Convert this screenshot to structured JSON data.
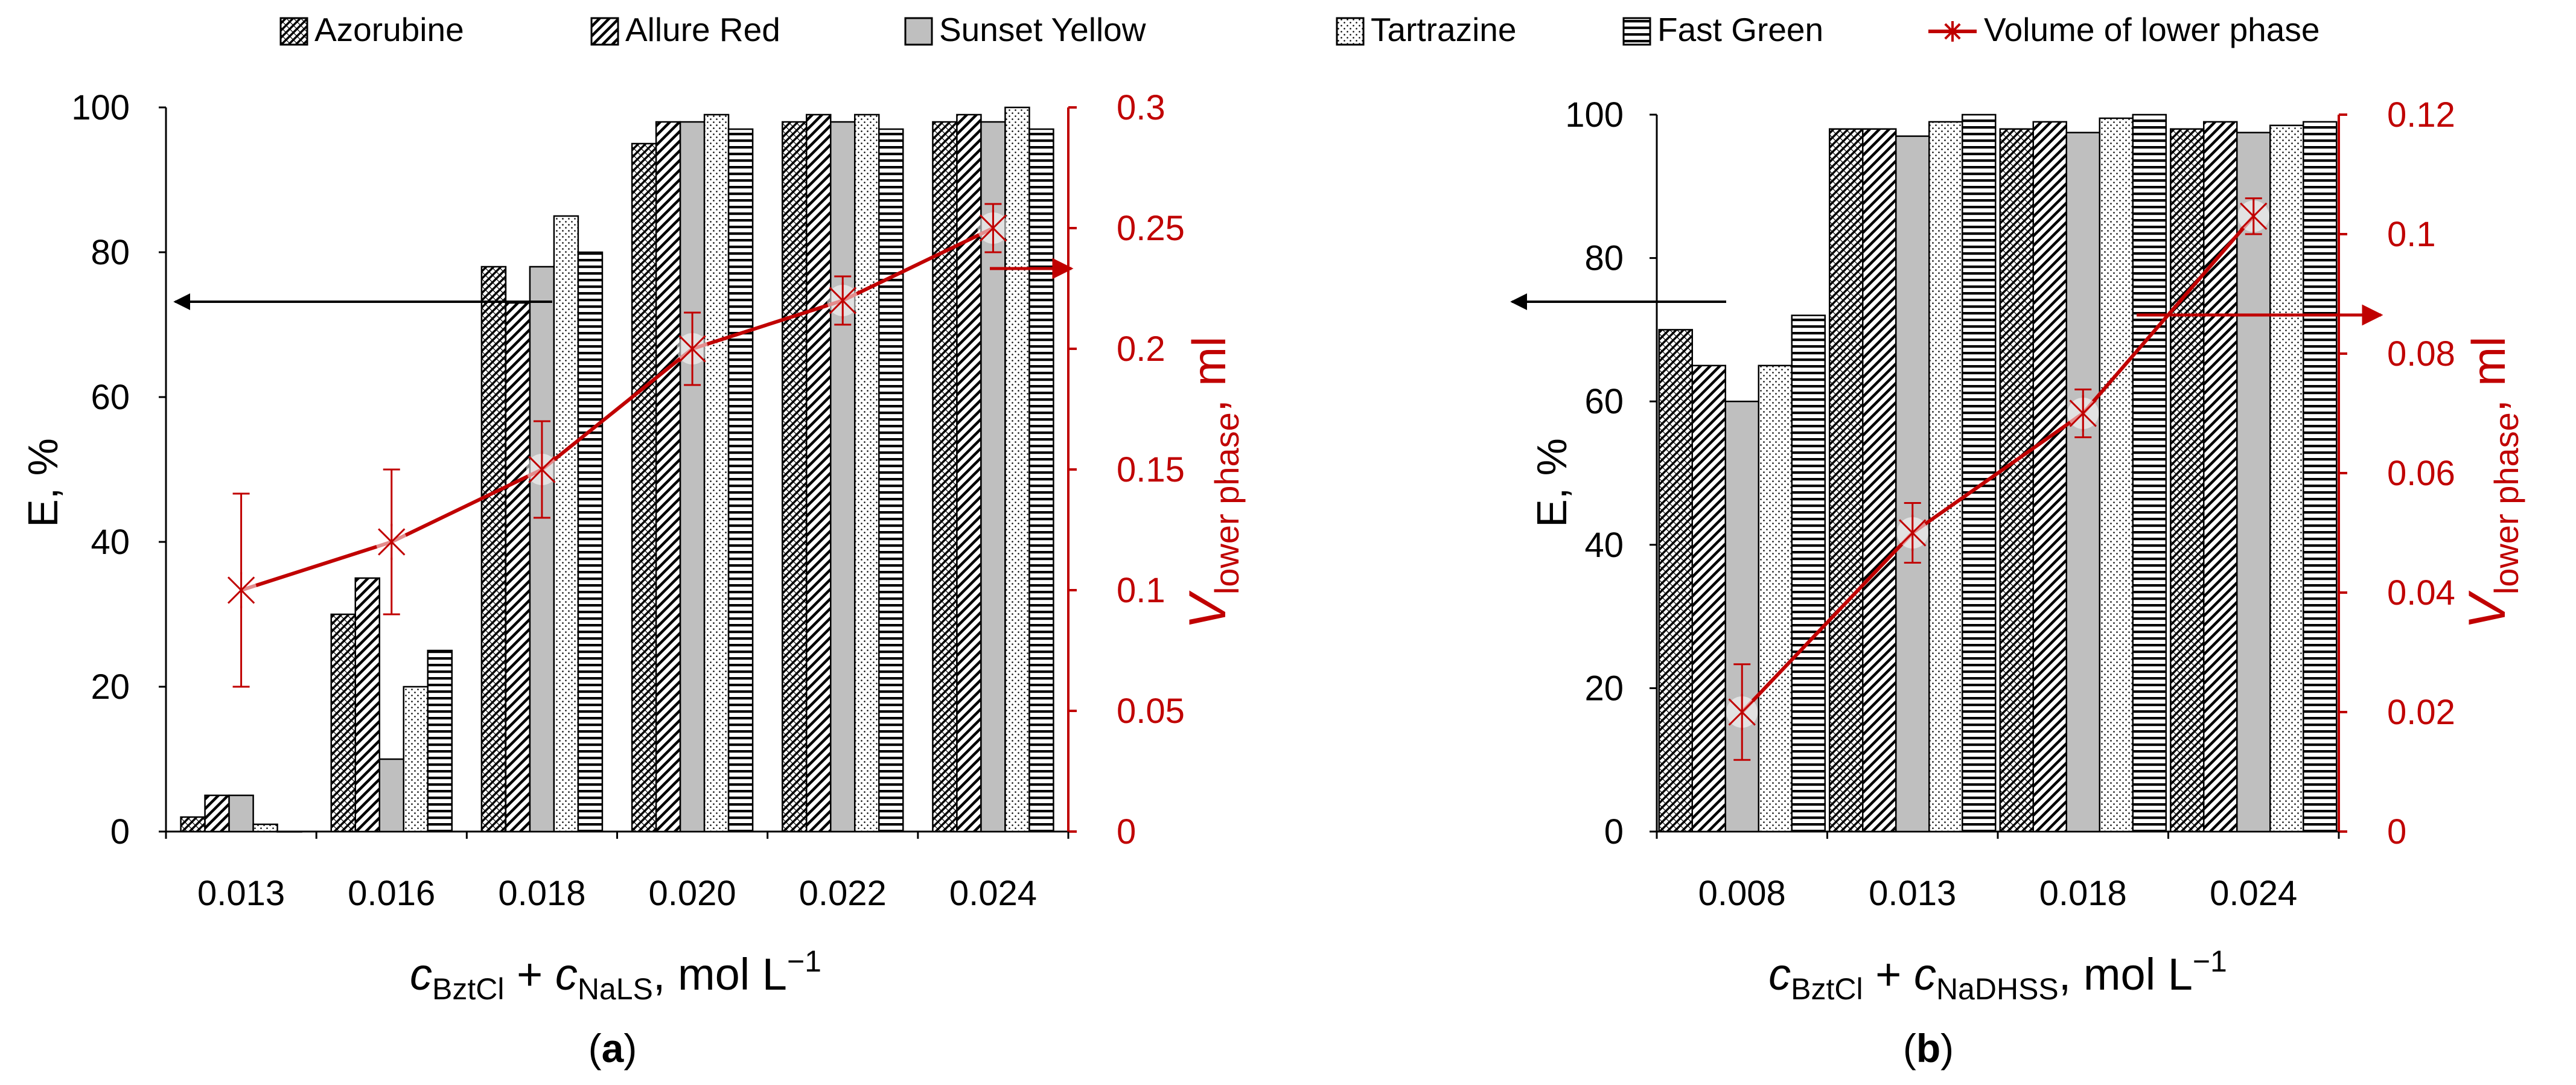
{
  "colors": {
    "axis": "#000000",
    "volume": "#c00000",
    "sunset_fill": "#bfbfbf"
  },
  "legend_left": [
    {
      "name": "Azorubine",
      "pattern": "crosshatch"
    },
    {
      "name": "Allure Red",
      "pattern": "diag"
    },
    {
      "name": "Sunset Yellow",
      "pattern": "solid"
    }
  ],
  "legend_right": [
    {
      "name": "Tartrazine",
      "pattern": "dots"
    },
    {
      "name": "Fast Green",
      "pattern": "hlines"
    },
    {
      "name": "Volume of  lower phase",
      "pattern": "marker"
    }
  ],
  "chart_data": [
    {
      "type": "bar",
      "panel_label": "a",
      "categories": [
        "0.013",
        "0.016",
        "0.018",
        "0.020",
        "0.022",
        "0.024"
      ],
      "series": [
        {
          "name": "Azorubine",
          "values": [
            2,
            30,
            78,
            95,
            98,
            98
          ]
        },
        {
          "name": "Allure Red",
          "values": [
            5,
            35,
            73,
            98,
            99,
            99
          ]
        },
        {
          "name": "Sunset Yellow",
          "values": [
            5,
            10,
            78,
            98,
            98,
            98
          ]
        },
        {
          "name": "Tartrazine",
          "values": [
            1,
            20,
            85,
            99,
            99,
            100
          ]
        },
        {
          "name": "Fast Green",
          "values": [
            0,
            25,
            80,
            97,
            97,
            97
          ]
        }
      ],
      "line_series": {
        "name": "Volume of  lower phase",
        "values": [
          0.1,
          0.12,
          0.15,
          0.2,
          0.22,
          0.25
        ],
        "errors": [
          0.04,
          0.03,
          0.02,
          0.015,
          0.01,
          0.01
        ]
      },
      "ylabel": "E, %",
      "ylim": [
        0,
        100
      ],
      "yticks": [
        "0",
        "20",
        "40",
        "60",
        "80",
        "100"
      ],
      "y2label": {
        "main": "V",
        "sub": "lower phase",
        "unit": ", ml"
      },
      "y2lim": [
        0,
        0.3
      ],
      "y2ticks": [
        "0",
        "0.05",
        "0.1",
        "0.15",
        "0.2",
        "0.25",
        "0.3"
      ],
      "xlabel": {
        "c1": "c",
        "sub1": "BztCl",
        "plus": " + ",
        "c2": "c",
        "sub2": "NaLS",
        "unit": ", mol L",
        "sup": "−1"
      }
    },
    {
      "type": "bar",
      "panel_label": "b",
      "categories": [
        "0.008",
        "0.013",
        "0.018",
        "0.024"
      ],
      "series": [
        {
          "name": "Azorubine",
          "values": [
            70,
            98,
            98,
            98
          ]
        },
        {
          "name": "Allure Red",
          "values": [
            65,
            98,
            99,
            99
          ]
        },
        {
          "name": "Sunset Yellow",
          "values": [
            60,
            97,
            97.5,
            97.5
          ]
        },
        {
          "name": "Tartrazine",
          "values": [
            65,
            99,
            99.5,
            98.5
          ]
        },
        {
          "name": "Fast Green",
          "values": [
            72,
            100,
            100,
            99
          ]
        }
      ],
      "line_series": {
        "name": "Volume of  lower phase",
        "values": [
          0.02,
          0.05,
          0.07,
          0.103
        ],
        "errors": [
          0.008,
          0.005,
          0.004,
          0.003
        ]
      },
      "ylabel": "E, %",
      "ylim": [
        0,
        100
      ],
      "yticks": [
        "0",
        "20",
        "40",
        "60",
        "80",
        "100"
      ],
      "y2label": {
        "main": "V",
        "sub": "lower phase",
        "unit": ", ml"
      },
      "y2lim": [
        0,
        0.12
      ],
      "y2ticks": [
        "0",
        "0.02",
        "0.04",
        "0.06",
        "0.08",
        "0.1",
        "0.12"
      ],
      "xlabel": {
        "c1": "c",
        "sub1": "BztCl",
        "plus": " + ",
        "c2": "c",
        "sub2": "NaDHSS",
        "unit": ", mol L",
        "sup": "−1"
      }
    }
  ]
}
